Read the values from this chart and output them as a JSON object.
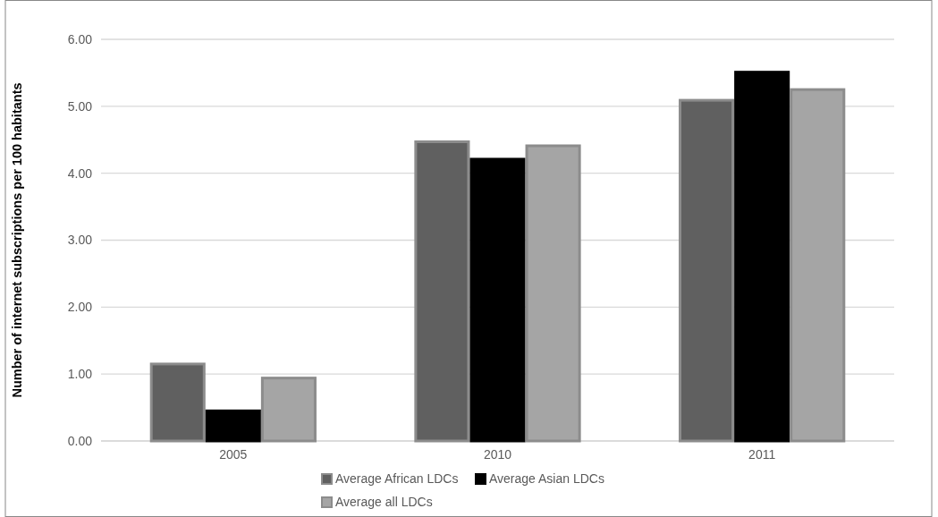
{
  "chart_data": {
    "type": "bar",
    "ylabel": "Number of internet subscriptions per 100 habitants",
    "categories": [
      "2005",
      "2010",
      "2011"
    ],
    "series": [
      {
        "name": "Average African LDCs",
        "color": "#606060",
        "values": [
          1.17,
          4.49,
          5.11
        ]
      },
      {
        "name": "Average Asian LDCs",
        "color": "#000000",
        "values": [
          0.47,
          4.23,
          5.53
        ]
      },
      {
        "name": "Average all LDCs",
        "color": "#a5a5a5",
        "values": [
          0.96,
          4.43,
          5.27
        ]
      }
    ],
    "ylim": [
      0,
      6
    ],
    "yticks": [
      {
        "value": 0,
        "label": "0.00"
      },
      {
        "value": 1,
        "label": "1.00"
      },
      {
        "value": 2,
        "label": "2.00"
      },
      {
        "value": 3,
        "label": "3.00"
      },
      {
        "value": 4,
        "label": "4.00"
      },
      {
        "value": 5,
        "label": "5.00"
      },
      {
        "value": 6,
        "label": "6.00"
      }
    ],
    "grid": "y",
    "legend": "bottom"
  }
}
